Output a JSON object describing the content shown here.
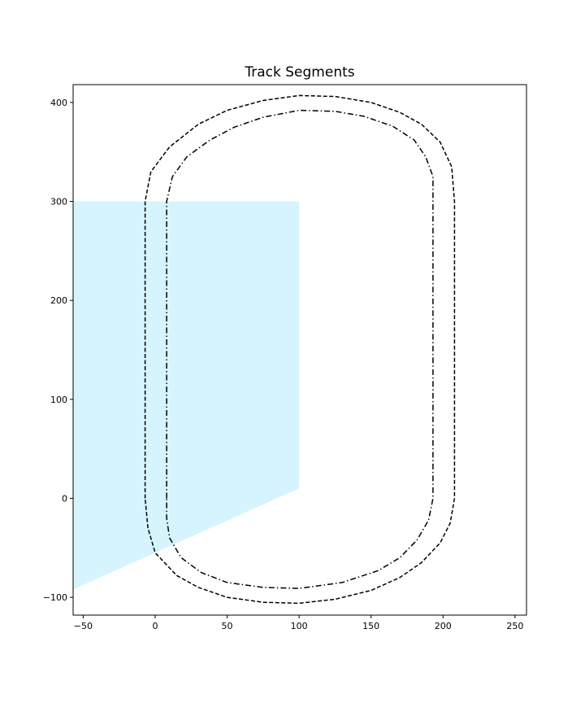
{
  "chart_data": {
    "type": "line",
    "title": "Track Segments",
    "xlabel": "",
    "ylabel": "",
    "xlim": [
      -57,
      258
    ],
    "ylim": [
      -118,
      418
    ],
    "xticks": [
      -50,
      0,
      50,
      100,
      150,
      200,
      250
    ],
    "yticks": [
      -100,
      0,
      100,
      200,
      300,
      400
    ],
    "grid": false,
    "legend": "none",
    "shaded_region": {
      "color": "#d6f4fd",
      "points": [
        [
          -57,
          300
        ],
        [
          100,
          300
        ],
        [
          100,
          10
        ],
        [
          -57,
          -92
        ]
      ]
    },
    "series": [
      {
        "style": "dashed",
        "color": "#000000",
        "points": [
          [
            -7,
            0
          ],
          [
            -7,
            300
          ],
          [
            -3,
            330
          ],
          [
            10,
            355
          ],
          [
            30,
            378
          ],
          [
            50,
            392
          ],
          [
            75,
            402
          ],
          [
            100,
            407
          ],
          [
            125,
            406
          ],
          [
            150,
            400
          ],
          [
            170,
            390
          ],
          [
            185,
            378
          ],
          [
            198,
            360
          ],
          [
            206,
            335
          ],
          [
            208,
            300
          ],
          [
            208,
            0
          ],
          [
            205,
            -25
          ],
          [
            198,
            -45
          ],
          [
            185,
            -65
          ],
          [
            170,
            -80
          ],
          [
            150,
            -93
          ],
          [
            125,
            -102
          ],
          [
            100,
            -106
          ],
          [
            75,
            -105
          ],
          [
            50,
            -100
          ],
          [
            30,
            -90
          ],
          [
            15,
            -78
          ],
          [
            0,
            -55
          ],
          [
            -5,
            -30
          ],
          [
            -7,
            0
          ]
        ]
      },
      {
        "style": "dashdot",
        "color": "#000000",
        "points": [
          [
            8,
            0
          ],
          [
            8,
            300
          ],
          [
            12,
            325
          ],
          [
            22,
            345
          ],
          [
            38,
            362
          ],
          [
            55,
            375
          ],
          [
            75,
            385
          ],
          [
            100,
            392
          ],
          [
            125,
            391
          ],
          [
            145,
            386
          ],
          [
            165,
            376
          ],
          [
            180,
            362
          ],
          [
            188,
            345
          ],
          [
            193,
            325
          ],
          [
            193,
            300
          ],
          [
            193,
            0
          ],
          [
            190,
            -22
          ],
          [
            182,
            -42
          ],
          [
            170,
            -60
          ],
          [
            155,
            -73
          ],
          [
            130,
            -85
          ],
          [
            100,
            -91
          ],
          [
            75,
            -90
          ],
          [
            50,
            -85
          ],
          [
            32,
            -75
          ],
          [
            18,
            -60
          ],
          [
            10,
            -40
          ],
          [
            8,
            -20
          ],
          [
            8,
            0
          ]
        ]
      }
    ]
  }
}
